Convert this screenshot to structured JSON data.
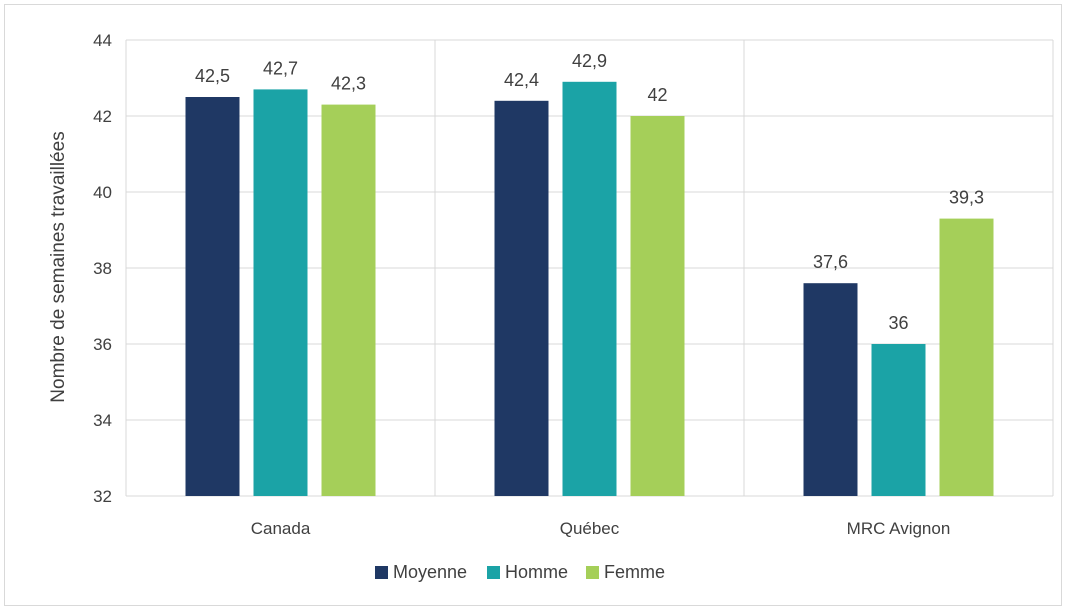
{
  "chart_data": {
    "type": "bar",
    "categories": [
      "Canada",
      "Québec",
      "MRC Avignon"
    ],
    "series": [
      {
        "name": "Moyenne",
        "values": [
          42.5,
          42.4,
          37.6
        ],
        "labels": [
          "42,5",
          "42,4",
          "37,6"
        ],
        "color": "#1f3864"
      },
      {
        "name": "Homme",
        "values": [
          42.7,
          42.9,
          36.0
        ],
        "labels": [
          "42,7",
          "42,9",
          "36"
        ],
        "color": "#1ba3a6"
      },
      {
        "name": "Femme",
        "values": [
          42.3,
          42.0,
          39.3
        ],
        "labels": [
          "42,3",
          "42",
          "39,3"
        ],
        "color": "#a5cf59"
      }
    ],
    "title": "",
    "xlabel": "",
    "ylabel": "Nombre de semaines travaillées",
    "ylim": [
      32,
      44
    ],
    "yticks": [
      32,
      34,
      36,
      38,
      40,
      42,
      44
    ],
    "grid": true,
    "legend": "bottom"
  }
}
